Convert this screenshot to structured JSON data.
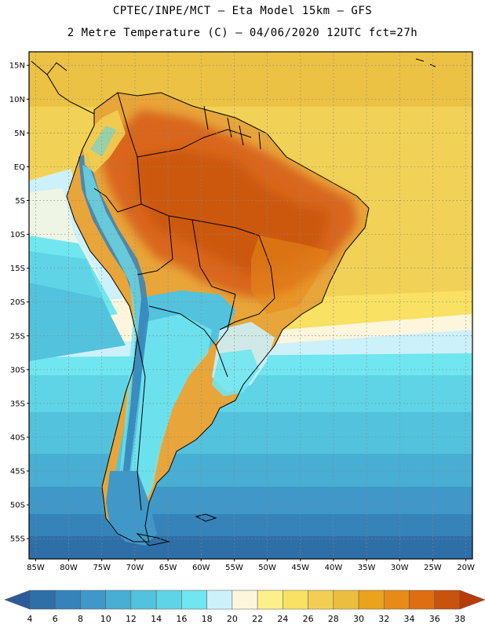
{
  "header": {
    "line1": "CPTEC/INPE/MCT –  Eta Model 15km – GFS",
    "line2": "2 Metre Temperature (C) – 04/06/2020 12UTC fct=27h"
  },
  "map": {
    "lat_labels": [
      "15N",
      "10N",
      "5N",
      "EQ",
      "5S",
      "10S",
      "15S",
      "20S",
      "25S",
      "30S",
      "35S",
      "40S",
      "45S",
      "50S",
      "55S"
    ],
    "lon_labels": [
      "85W",
      "80W",
      "75W",
      "70W",
      "65W",
      "60W",
      "55W",
      "50W",
      "45W",
      "40W",
      "35W",
      "30W",
      "25W",
      "20W"
    ],
    "lat_values": [
      15,
      10,
      5,
      0,
      -5,
      -10,
      -15,
      -20,
      -25,
      -30,
      -35,
      -40,
      -45,
      -50,
      -55
    ],
    "lon_values": [
      -85,
      -80,
      -75,
      -70,
      -65,
      -60,
      -55,
      -50,
      -45,
      -40,
      -35,
      -30,
      -25,
      -20
    ],
    "lat_range": [
      -58,
      17
    ],
    "lon_range": [
      -86,
      -19
    ]
  },
  "colorbar": {
    "labels": [
      "4",
      "6",
      "8",
      "10",
      "12",
      "14",
      "16",
      "18",
      "20",
      "22",
      "24",
      "26",
      "28",
      "30",
      "32",
      "34",
      "36",
      "38"
    ],
    "colors": [
      "#2e6fa8",
      "#3583b9",
      "#3f98c8",
      "#48aed3",
      "#53c2dd",
      "#5fd4e6",
      "#70e6f0",
      "#cdf1fb",
      "#fdf6dc",
      "#fbf08a",
      "#f8e163",
      "#f2cf52",
      "#ecbe3f",
      "#eba21d",
      "#e88a17",
      "#df6e12",
      "#c9520c"
    ],
    "low_color": "#2b5b9a",
    "high_color": "#b83c0a"
  }
}
